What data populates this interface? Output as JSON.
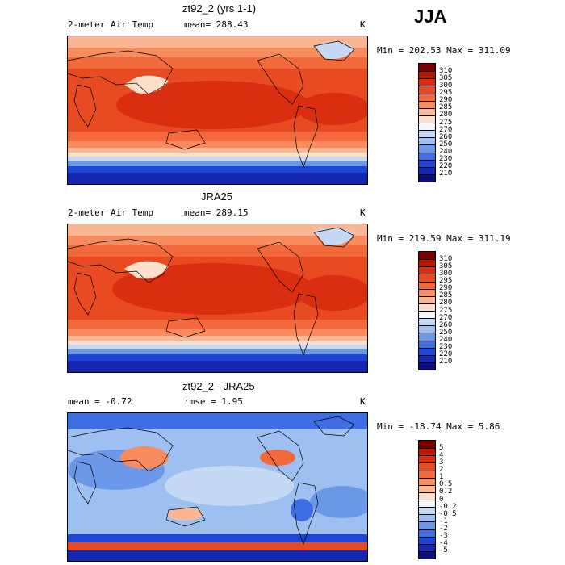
{
  "season": "JJA",
  "panels": [
    {
      "title": "zt92_2 (yrs 1-1)",
      "left_label": "2-meter Air Temp",
      "mid_label": "mean= 288.43",
      "unit": "K",
      "minmax": "Min = 202.53 Max = 311.09",
      "levels": [
        "310",
        "305",
        "300",
        "295",
        "290",
        "285",
        "280",
        "275",
        "270",
        "260",
        "250",
        "240",
        "230",
        "220",
        "210"
      ],
      "colors": [
        "#7a0000",
        "#b51a00",
        "#d92e0f",
        "#e84a22",
        "#f2693b",
        "#f88c5e",
        "#fbb794",
        "#fde0cc",
        "#f2f5fb",
        "#c5d9f5",
        "#9ec0f0",
        "#6c98ea",
        "#3e6ee3",
        "#1d45d6",
        "#1527b0",
        "#0a0f7a"
      ]
    },
    {
      "title": "JRA25",
      "left_label": "2-meter Air Temp",
      "mid_label": "mean= 289.15",
      "unit": "K",
      "minmax": "Min = 219.59 Max = 311.19",
      "levels": [
        "310",
        "305",
        "300",
        "295",
        "290",
        "285",
        "280",
        "275",
        "270",
        "260",
        "250",
        "240",
        "230",
        "220",
        "210"
      ],
      "colors": [
        "#7a0000",
        "#b51a00",
        "#d92e0f",
        "#e84a22",
        "#f2693b",
        "#f88c5e",
        "#fbb794",
        "#fde0cc",
        "#f2f5fb",
        "#c5d9f5",
        "#9ec0f0",
        "#6c98ea",
        "#3e6ee3",
        "#1d45d6",
        "#1527b0",
        "#0a0f7a"
      ]
    },
    {
      "title": "zt92_2 - JRA25",
      "left_label": "mean =   -0.72",
      "mid_label": "rmse =    1.95",
      "unit": "K",
      "minmax": "Min = -18.74 Max =   5.86",
      "levels": [
        "5",
        "4",
        "3",
        "2",
        "1",
        "0.5",
        "0.2",
        "0",
        "-0.2",
        "-0.5",
        "-1",
        "-2",
        "-3",
        "-4",
        "-5"
      ],
      "colors": [
        "#7a0000",
        "#b51a00",
        "#d92e0f",
        "#e84a22",
        "#f2693b",
        "#f88c5e",
        "#fbb794",
        "#fde0cc",
        "#f2f5fb",
        "#c5d9f5",
        "#9ec0f0",
        "#6c98ea",
        "#3e6ee3",
        "#1d45d6",
        "#1527b0",
        "#0a0f7a"
      ]
    }
  ],
  "chart_data": [
    {
      "type": "heatmap",
      "title": "zt92_2 (yrs 1-1)",
      "variable": "2-meter Air Temp",
      "unit": "K",
      "mean": 288.43,
      "min": 202.53,
      "max": 311.09,
      "contour_levels": [
        210,
        220,
        230,
        240,
        250,
        260,
        270,
        275,
        280,
        285,
        290,
        295,
        300,
        305,
        310
      ]
    },
    {
      "type": "heatmap",
      "title": "JRA25",
      "variable": "2-meter Air Temp",
      "unit": "K",
      "mean": 289.15,
      "min": 219.59,
      "max": 311.19,
      "contour_levels": [
        210,
        220,
        230,
        240,
        250,
        260,
        270,
        275,
        280,
        285,
        290,
        295,
        300,
        305,
        310
      ]
    },
    {
      "type": "heatmap",
      "title": "zt92_2 - JRA25",
      "unit": "K",
      "mean": -0.72,
      "rmse": 1.95,
      "min": -18.74,
      "max": 5.86,
      "contour_levels": [
        -5,
        -4,
        -3,
        -2,
        -1,
        -0.5,
        -0.2,
        0,
        0.2,
        0.5,
        1,
        2,
        3,
        4,
        5
      ]
    }
  ]
}
